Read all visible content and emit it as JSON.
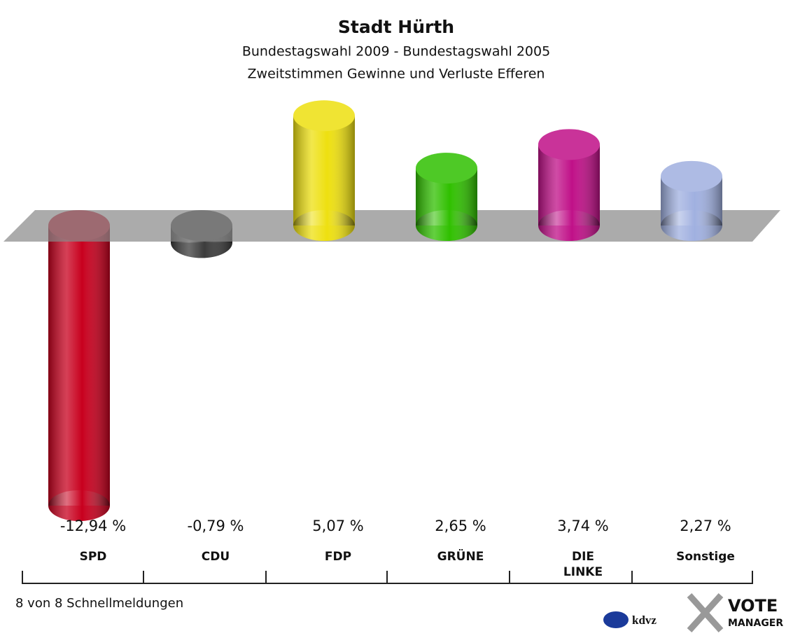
{
  "chart_data": {
    "type": "bar",
    "title": "Stadt Hürth",
    "subtitle": [
      "Bundestagswahl 2009 - Bundestagswahl 2005",
      "Zweitstimmen Gewinne und Verluste Efferen"
    ],
    "categories": [
      "SPD",
      "CDU",
      "FDP",
      "GRÜNE",
      "DIE LINKE",
      "Sonstige"
    ],
    "values": [
      -12.94,
      -0.79,
      5.07,
      2.65,
      3.74,
      2.27
    ],
    "value_labels": [
      "-12,94 %",
      "-0,79 %",
      "5,07 %",
      "2,65 %",
      "3,74 %",
      "2,27 %"
    ],
    "colors": [
      "#c8001e",
      "#3c3c3c",
      "#eee010",
      "#30c000",
      "#c01088",
      "#a0b0e0"
    ],
    "footer": "8 von 8 Schnellmeldungen",
    "logo": [
      "kdvz",
      "VOTE",
      "MANAGER"
    ]
  }
}
